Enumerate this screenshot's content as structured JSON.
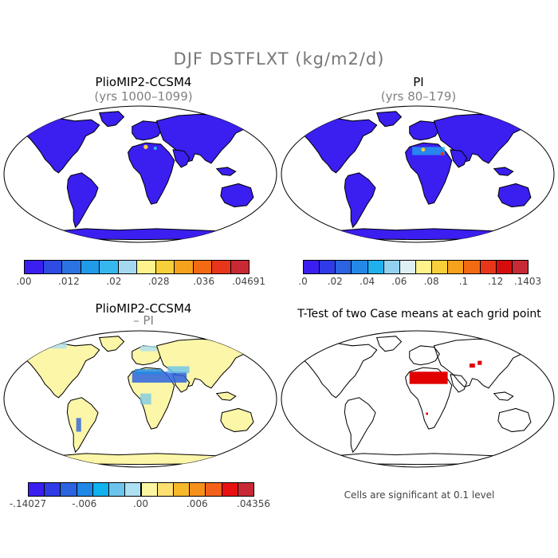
{
  "title": "DJF DSTFLXT (kg/m2/d)",
  "panels": [
    {
      "id": "tl",
      "title": "PlioMIP2-CCSM4",
      "subtitle": "(yrs 1000–1099)"
    },
    {
      "id": "tr",
      "title": "PI",
      "subtitle": "(yrs 80–179)"
    },
    {
      "id": "bl",
      "title": "PlioMIP2-CCSM4",
      "subtitle": "– PI"
    },
    {
      "id": "br",
      "title": "T-Test of two Case means at each grid point",
      "subtitle": ""
    }
  ],
  "colorbars": {
    "tl": {
      "colors": [
        "#3a1ff0",
        "#2e4be2",
        "#2b73e0",
        "#1f9be8",
        "#36b8ee",
        "#a4d8f0",
        "#fdf28c",
        "#f7cf38",
        "#f6a21c",
        "#f26b12",
        "#e8361a",
        "#c72a35"
      ],
      "labels": [
        ".00",
        ".012",
        ".02",
        ".028",
        ".036",
        ".04691"
      ]
    },
    "tr": {
      "colors": [
        "#3a1ff0",
        "#2e3be6",
        "#2b63e0",
        "#2489e6",
        "#1fb0ee",
        "#93d2ef",
        "#dff0f4",
        "#fdf28c",
        "#f7cf38",
        "#f6a21c",
        "#f26b12",
        "#e8361a",
        "#d60d0d",
        "#c72a35"
      ],
      "labels": [
        ".0",
        ".02",
        ".04",
        ".06",
        ".08",
        ".1",
        ".12",
        ".1403"
      ]
    },
    "bl": {
      "colors": [
        "#3a1ff0",
        "#2e3be6",
        "#2b63e0",
        "#1f88e6",
        "#0fb1ee",
        "#6cc4ec",
        "#ade0f2",
        "#fdf6a0",
        "#fde070",
        "#f7b829",
        "#f6901a",
        "#f2621b",
        "#e81010",
        "#c72a35"
      ],
      "labels": [
        "-.14027",
        "-.006",
        ".00",
        ".006",
        ".04356"
      ]
    }
  },
  "map_fill": {
    "tl": "#3a1ff0",
    "tr": "#3a1ff0",
    "bl": "#fcf6a8",
    "br": "none",
    "ocean": "#ffffff",
    "significant": "#e00000"
  },
  "note": "Cells are significant at 0.1 level"
}
